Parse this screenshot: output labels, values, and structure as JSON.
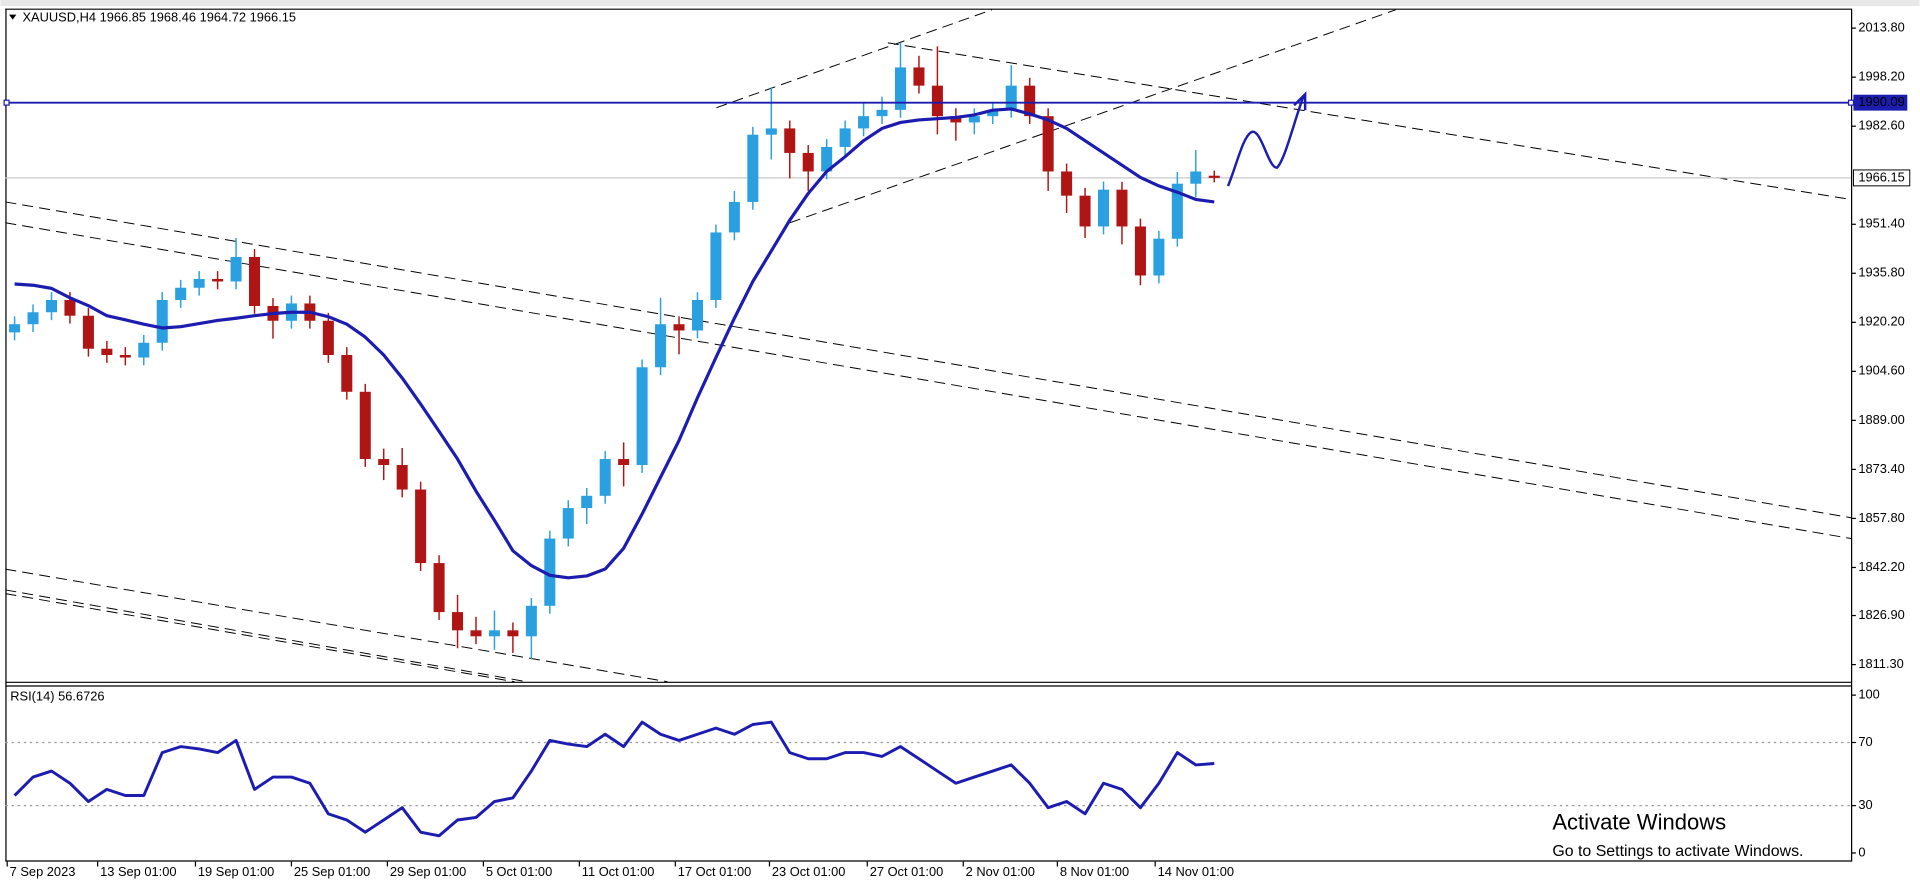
{
  "chart_data": [
    {
      "type": "candlestick",
      "title": "XAUUSD,H4",
      "open": [
        1917.0,
        1919.6,
        1923.4,
        1927.3,
        1922.3,
        1911.8,
        1909.8,
        1909.0,
        1913.7,
        1927.3,
        1931.2,
        1934.0,
        1933.2,
        1941.0,
        1925.4,
        1920.7,
        1926.2,
        1920.7,
        1909.8,
        1898.1,
        1876.7,
        1874.8,
        1867.0,
        1843.6,
        1828.0,
        1822.2,
        1820.3,
        1822.2,
        1820.3,
        1830.0,
        1851.4,
        1861.1,
        1865.0,
        1876.7,
        1874.8,
        1905.9,
        1919.6,
        1917.6,
        1927.3,
        1948.8,
        1958.5,
        1979.9,
        1981.9,
        1974.1,
        1968.2,
        1976.0,
        1981.9,
        1985.8,
        1987.8,
        2001.3,
        1995.5,
        1985.8,
        1983.8,
        1985.8,
        1987.8,
        1995.5,
        1985.8,
        1968.2,
        1960.5,
        1950.7,
        1962.4,
        1950.7,
        1935.1,
        1946.8,
        1964.3,
        1966.85
      ],
      "high": [
        1922.1,
        1925.9,
        1929.8,
        1929.8,
        1924.8,
        1914.3,
        1912.3,
        1916.2,
        1929.8,
        1933.7,
        1936.5,
        1936.5,
        1947.0,
        1943.5,
        1927.9,
        1928.7,
        1928.7,
        1923.2,
        1912.3,
        1900.6,
        1880.0,
        1880.2,
        1869.5,
        1846.1,
        1833.5,
        1826.5,
        1828.5,
        1824.7,
        1832.5,
        1853.9,
        1863.6,
        1867.5,
        1879.2,
        1882.0,
        1908.4,
        1928.0,
        1922.1,
        1929.8,
        1951.3,
        1962.0,
        1982.4,
        1995.0,
        1984.4,
        1976.6,
        1978.5,
        1984.4,
        1990.0,
        1992.0,
        2009.1,
        2005.0,
        2008.0,
        1988.3,
        1988.3,
        1990.3,
        2002.0,
        1998.0,
        1988.3,
        1970.7,
        1963.0,
        1965.0,
        1964.9,
        1953.2,
        1949.3,
        1968.0,
        1975.0,
        1968.46
      ],
      "low": [
        1914.5,
        1917.1,
        1920.9,
        1919.8,
        1909.3,
        1907.3,
        1906.5,
        1906.5,
        1911.2,
        1924.8,
        1928.7,
        1930.7,
        1930.7,
        1922.9,
        1915.0,
        1918.2,
        1918.2,
        1907.3,
        1895.6,
        1874.2,
        1870.0,
        1864.5,
        1841.1,
        1825.5,
        1816.5,
        1817.8,
        1816.0,
        1815.0,
        1813.0,
        1827.5,
        1848.9,
        1856.0,
        1862.5,
        1868.0,
        1872.3,
        1903.4,
        1910.0,
        1915.1,
        1924.8,
        1946.3,
        1956.0,
        1972.0,
        1966.0,
        1962.0,
        1965.7,
        1973.5,
        1979.4,
        1983.3,
        1985.3,
        1993.0,
        1980.0,
        1978.0,
        1980.0,
        1983.3,
        1985.3,
        1983.3,
        1962.0,
        1955.0,
        1947.0,
        1948.2,
        1945.0,
        1932.0,
        1932.6,
        1944.3,
        1960.0,
        1964.72
      ],
      "close": [
        1919.6,
        1923.4,
        1927.3,
        1922.3,
        1911.8,
        1909.8,
        1909.0,
        1913.7,
        1927.3,
        1931.2,
        1934.0,
        1933.2,
        1941.0,
        1925.4,
        1920.7,
        1926.2,
        1920.7,
        1909.8,
        1898.1,
        1876.7,
        1874.8,
        1867.0,
        1843.6,
        1828.0,
        1822.2,
        1820.3,
        1822.2,
        1820.3,
        1830.0,
        1851.4,
        1861.1,
        1865.0,
        1876.7,
        1874.8,
        1905.9,
        1919.6,
        1917.6,
        1927.3,
        1948.8,
        1958.5,
        1979.9,
        1981.9,
        1974.1,
        1968.2,
        1976.0,
        1981.9,
        1985.8,
        1987.8,
        2001.3,
        1995.5,
        1985.8,
        1983.8,
        1985.8,
        1987.8,
        1995.5,
        1985.8,
        1968.2,
        1960.5,
        1950.7,
        1962.4,
        1950.7,
        1935.1,
        1946.8,
        1964.3,
        1968.2,
        1966.15
      ],
      "up_color": "#2aa0e0",
      "down_color": "#b01515",
      "ma": {
        "color": "#1c1cb0",
        "values": [
          1932.4,
          1932.0,
          1931.0,
          1928.0,
          1925.5,
          1922.3,
          1921.0,
          1919.6,
          1918.4,
          1918.8,
          1919.8,
          1920.8,
          1921.5,
          1922.3,
          1923.0,
          1923.4,
          1923.4,
          1922.0,
          1919.6,
          1915.5,
          1909.8,
          1902.5,
          1894.2,
          1885.5,
          1876.7,
          1866.5,
          1857.2,
          1847.5,
          1842.8,
          1839.7,
          1838.9,
          1839.5,
          1841.7,
          1848.3,
          1859.2,
          1870.9,
          1882.6,
          1896.2,
          1909.0,
          1921.5,
          1933.2,
          1942.9,
          1952.7,
          1961.2,
          1968.2,
          1972.9,
          1978.0,
          1981.9,
          1983.8,
          1984.6,
          1985.0,
          1985.4,
          1986.2,
          1987.7,
          1988.1,
          1986.5,
          1984.6,
          1981.9,
          1978.0,
          1974.1,
          1970.2,
          1966.3,
          1963.6,
          1961.6,
          1959.3,
          1958.5
        ]
      },
      "hline": {
        "value": 1990.09,
        "color": "#1c1cb0"
      },
      "ylim": [
        1805.85,
        2019.64
      ],
      "yticks": [
        {
          "value": 2013.8,
          "label": "2013.80"
        },
        {
          "value": 1998.2,
          "label": "1998.20"
        },
        {
          "value": 1982.6,
          "label": "1982.60"
        },
        {
          "value": 1951.4,
          "label": "1951.40"
        },
        {
          "value": 1935.8,
          "label": "1935.80"
        },
        {
          "value": 1920.2,
          "label": "1920.20"
        },
        {
          "value": 1904.6,
          "label": "1904.60"
        },
        {
          "value": 1889.0,
          "label": "1889.00"
        },
        {
          "value": 1873.4,
          "label": "1873.40"
        },
        {
          "value": 1857.8,
          "label": "1857.80"
        },
        {
          "value": 1842.2,
          "label": "1842.20"
        },
        {
          "value": 1826.9,
          "label": "1826.90"
        },
        {
          "value": 1811.3,
          "label": "1811.30"
        }
      ],
      "xlim": [
        -0.5,
        99.5
      ],
      "xticks": [
        {
          "value": -0.4,
          "label": "7 Sep 2023"
        },
        {
          "value": 4.5,
          "label": "13 Sep 01:00"
        },
        {
          "value": 9.8,
          "label": "19 Sep 01:00"
        },
        {
          "value": 15,
          "label": "25 Sep 01:00"
        },
        {
          "value": 20.2,
          "label": "29 Sep 01:00"
        },
        {
          "value": 25.4,
          "label": "5 Oct 01:00"
        },
        {
          "value": 30.6,
          "label": "11 Oct 01:00"
        },
        {
          "value": 35.8,
          "label": "17 Oct 01:00"
        },
        {
          "value": 40.9,
          "label": "23 Oct 01:00"
        },
        {
          "value": 46.2,
          "label": "27 Oct 01:00"
        },
        {
          "value": 51.4,
          "label": "2 Nov 01:00"
        },
        {
          "value": 56.5,
          "label": "8 Nov 01:00"
        },
        {
          "value": 61.8,
          "label": "14 Nov 01:00"
        }
      ]
    },
    {
      "type": "line",
      "title": "RSI(14)",
      "color": "#1c1cb0",
      "values": [
        36.4,
        48.1,
        51.9,
        44.2,
        32.6,
        40.3,
        36.4,
        36.4,
        63.6,
        67.4,
        65.9,
        63.6,
        71.3,
        40.3,
        48.1,
        48.1,
        44.2,
        24.8,
        20.9,
        13.2,
        20.9,
        28.7,
        13.2,
        10.9,
        20.9,
        22.5,
        32.6,
        34.9,
        51.9,
        71.3,
        69.0,
        67.4,
        75.2,
        67.4,
        82.9,
        75.2,
        71.3,
        75.2,
        79.1,
        75.2,
        81.4,
        82.9,
        63.6,
        59.7,
        59.7,
        63.6,
        63.6,
        61.2,
        67.4,
        59.7,
        51.9,
        44.2,
        48.1,
        51.9,
        55.8,
        44.2,
        28.7,
        32.6,
        24.8,
        44.2,
        40.3,
        28.7,
        44.2,
        63.6,
        55.8,
        56.6726
      ],
      "ylim": [
        -4.7,
        105.4
      ],
      "yticks": [
        100,
        70,
        30,
        0
      ],
      "levels": [
        70,
        30
      ]
    }
  ],
  "watermark": {
    "title": "Activate Windows",
    "subtitle": "Go to Settings to activate Windows."
  }
}
